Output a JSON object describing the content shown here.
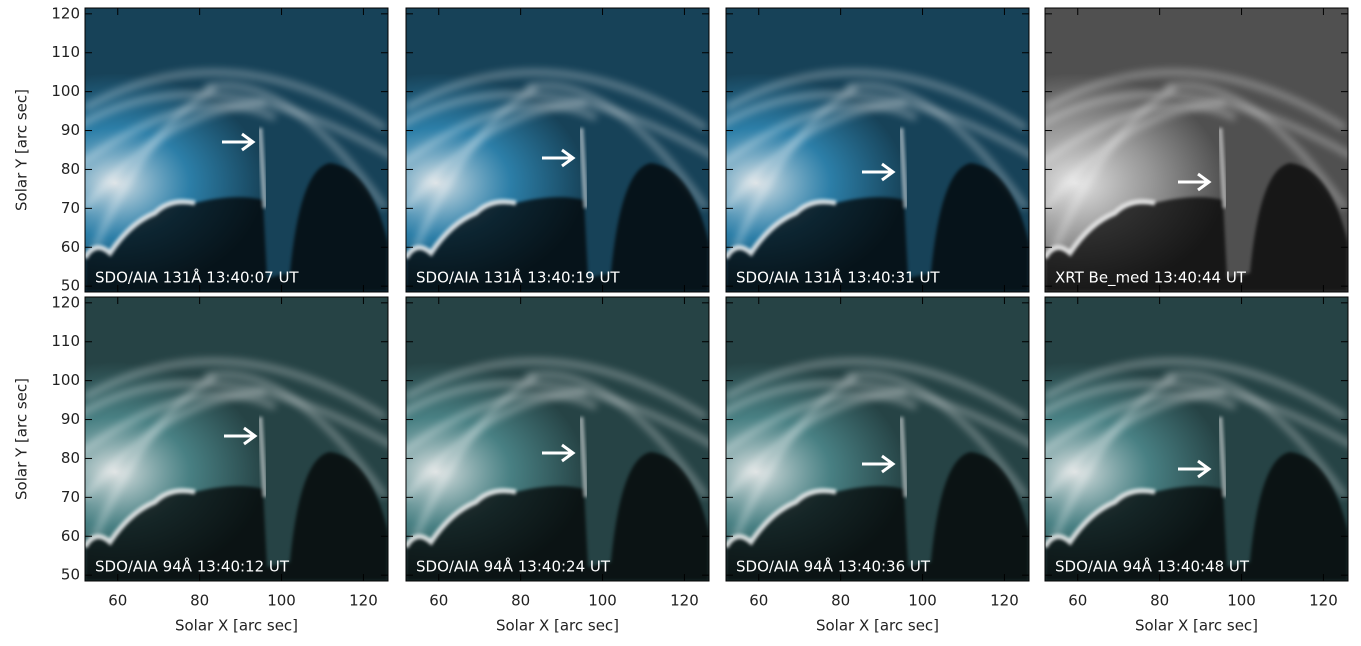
{
  "chart_data": {
    "type": "image",
    "xlabel": "Solar X [arc sec]",
    "ylabel": "Solar Y [arc sec]",
    "xlim": [
      52,
      126
    ],
    "ylim": [
      48.5,
      121.5
    ],
    "xticks": [
      60,
      80,
      100,
      120
    ],
    "yticks": [
      50,
      60,
      70,
      80,
      90,
      100,
      110,
      120
    ],
    "panels": [
      {
        "label": "SDO/AIA 131Å 13:40:07 UT",
        "color": "#3aa6dc"
      },
      {
        "label": "SDO/AIA 131Å 13:40:19 UT",
        "color": "#3aa6dc"
      },
      {
        "label": "SDO/AIA 131Å 13:40:31 UT",
        "color": "#3aa6dc"
      },
      {
        "label": "XRT Be_med 13:40:44 UT",
        "color": "#c8c8c8"
      },
      {
        "label": "SDO/AIA 94Å 13:40:12 UT",
        "color": "#5fa8ac"
      },
      {
        "label": "SDO/AIA 94Å 13:40:24 UT",
        "color": "#5fa8ac"
      },
      {
        "label": "SDO/AIA 94Å 13:40:36 UT",
        "color": "#5fa8ac"
      },
      {
        "label": "SDO/AIA 94Å 13:40:48 UT",
        "color": "#5fa8ac"
      }
    ]
  }
}
